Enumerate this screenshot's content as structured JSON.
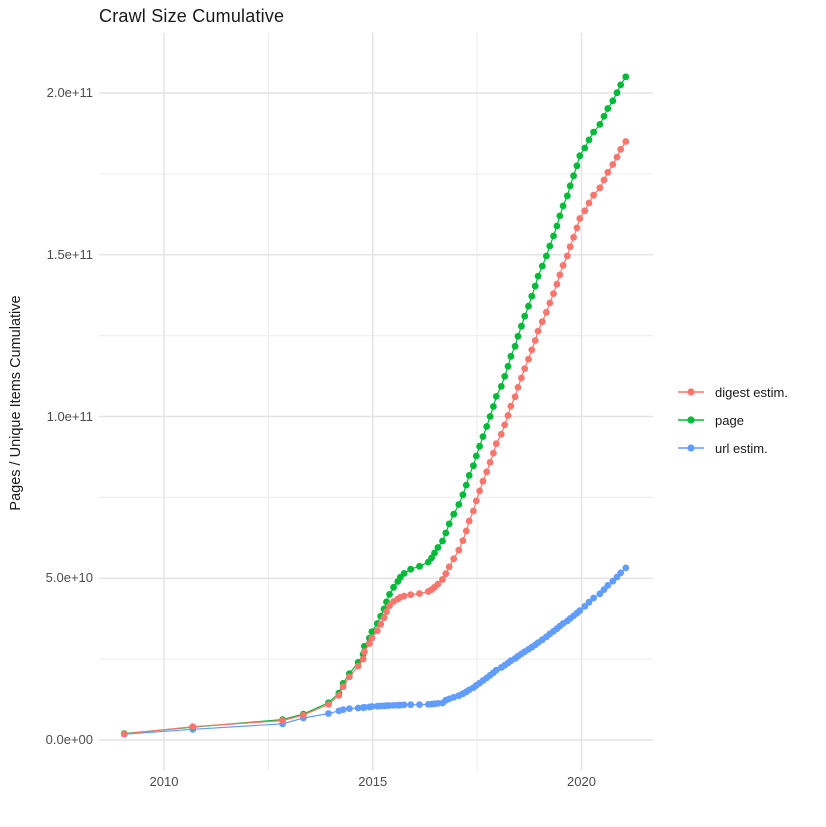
{
  "title": "Crawl Size Cumulative",
  "y_axis": {
    "label": "Pages / Unique Items Cumulative",
    "tick_labels": [
      "0.0e+00",
      "5.0e+10",
      "1.0e+11",
      "1.5e+11",
      "2.0e+11"
    ],
    "tick_values_e9": [
      0,
      50,
      100,
      150,
      200
    ],
    "minor_tick_values_e9": [
      25,
      75,
      125,
      175
    ]
  },
  "x_axis": {
    "tick_labels": [
      "2010",
      "2015",
      "2020"
    ],
    "tick_values": [
      2010,
      2015,
      2020
    ],
    "minor_tick_values": [
      2012.5,
      2017.5
    ]
  },
  "legend": {
    "position": "right",
    "entries": [
      "digest estim.",
      "page",
      "url estim."
    ]
  },
  "style": {
    "background": "#ffffff",
    "grid_major_color": "#e4e4e4",
    "grid_minor_color": "#f0f0f0",
    "tick_text_color": "#4d4d4d",
    "title_color": "#1a1a1a"
  },
  "chart_data": {
    "type": "line",
    "title": "Crawl Size Cumulative",
    "xlabel": "",
    "ylabel": "Pages / Unique Items Cumulative",
    "xlim": [
      2008.45,
      2021.66
    ],
    "ylim_e9": [
      0,
      218
    ],
    "values_unit": "1e9 (points stored as [year, value_in_billions])",
    "grid": true,
    "legend_position": "right-center",
    "marker": "point-with-line",
    "series": [
      {
        "name": "digest estim.",
        "color": "#F8766D",
        "points": [
          [
            2009.05,
            1.9
          ],
          [
            2010.69,
            4.1
          ],
          [
            2012.84,
            6.0
          ],
          [
            2013.34,
            7.7
          ],
          [
            2013.94,
            11.0
          ],
          [
            2014.19,
            13.8
          ],
          [
            2014.29,
            16.5
          ],
          [
            2014.44,
            19.5
          ],
          [
            2014.65,
            22.8
          ],
          [
            2014.77,
            25.0
          ],
          [
            2014.8,
            27.3
          ],
          [
            2014.92,
            29.8
          ],
          [
            2014.98,
            31.5
          ],
          [
            2015.11,
            33.8
          ],
          [
            2015.19,
            35.8
          ],
          [
            2015.27,
            37.8
          ],
          [
            2015.33,
            39.7
          ],
          [
            2015.4,
            41.5
          ],
          [
            2015.5,
            42.8
          ],
          [
            2015.6,
            43.6
          ],
          [
            2015.66,
            44.1
          ],
          [
            2015.75,
            44.5
          ],
          [
            2015.91,
            44.9
          ],
          [
            2016.12,
            45.3
          ],
          [
            2016.33,
            45.9
          ],
          [
            2016.41,
            46.5
          ],
          [
            2016.48,
            47.2
          ],
          [
            2016.56,
            48.2
          ],
          [
            2016.67,
            49.6
          ],
          [
            2016.75,
            51.4
          ],
          [
            2016.83,
            53.5
          ],
          [
            2016.94,
            56.0
          ],
          [
            2017.06,
            58.7
          ],
          [
            2017.16,
            61.6
          ],
          [
            2017.24,
            64.6
          ],
          [
            2017.31,
            67.7
          ],
          [
            2017.41,
            70.8
          ],
          [
            2017.48,
            73.9
          ],
          [
            2017.56,
            77.0
          ],
          [
            2017.64,
            80.0
          ],
          [
            2017.73,
            82.9
          ],
          [
            2017.81,
            85.8
          ],
          [
            2017.89,
            88.7
          ],
          [
            2017.96,
            91.6
          ],
          [
            2018.08,
            94.5
          ],
          [
            2018.16,
            97.4
          ],
          [
            2018.24,
            100.3
          ],
          [
            2018.31,
            103.2
          ],
          [
            2018.41,
            106.1
          ],
          [
            2018.48,
            109.0
          ],
          [
            2018.56,
            111.9
          ],
          [
            2018.64,
            114.8
          ],
          [
            2018.73,
            117.7
          ],
          [
            2018.81,
            120.6
          ],
          [
            2018.89,
            123.5
          ],
          [
            2018.96,
            126.4
          ],
          [
            2019.06,
            129.3
          ],
          [
            2019.16,
            132.2
          ],
          [
            2019.24,
            135.1
          ],
          [
            2019.33,
            138.0
          ],
          [
            2019.41,
            140.9
          ],
          [
            2019.48,
            143.8
          ],
          [
            2019.56,
            146.7
          ],
          [
            2019.66,
            149.6
          ],
          [
            2019.73,
            152.5
          ],
          [
            2019.81,
            155.4
          ],
          [
            2019.89,
            158.3
          ],
          [
            2019.96,
            161.2
          ],
          [
            2020.08,
            163.6
          ],
          [
            2020.18,
            166.0
          ],
          [
            2020.29,
            168.4
          ],
          [
            2020.44,
            170.7
          ],
          [
            2020.54,
            173.1
          ],
          [
            2020.63,
            175.5
          ],
          [
            2020.75,
            177.9
          ],
          [
            2020.85,
            180.2
          ],
          [
            2020.94,
            182.6
          ],
          [
            2021.06,
            185.0
          ]
        ]
      },
      {
        "name": "page",
        "color": "#00BA38",
        "points": [
          [
            2009.05,
            2.0
          ],
          [
            2010.69,
            4.0
          ],
          [
            2012.84,
            6.3
          ],
          [
            2013.34,
            8.0
          ],
          [
            2013.94,
            11.5
          ],
          [
            2014.19,
            14.5
          ],
          [
            2014.29,
            17.5
          ],
          [
            2014.44,
            20.5
          ],
          [
            2014.65,
            24.0
          ],
          [
            2014.77,
            26.5
          ],
          [
            2014.8,
            29.0
          ],
          [
            2014.92,
            31.5
          ],
          [
            2014.98,
            33.5
          ],
          [
            2015.11,
            36.0
          ],
          [
            2015.19,
            38.3
          ],
          [
            2015.27,
            40.5
          ],
          [
            2015.33,
            42.7
          ],
          [
            2015.4,
            45.0
          ],
          [
            2015.5,
            47.2
          ],
          [
            2015.6,
            49.0
          ],
          [
            2015.66,
            50.3
          ],
          [
            2015.75,
            51.5
          ],
          [
            2015.91,
            52.8
          ],
          [
            2016.12,
            53.7
          ],
          [
            2016.33,
            55.0
          ],
          [
            2016.41,
            56.3
          ],
          [
            2016.48,
            57.8
          ],
          [
            2016.56,
            59.5
          ],
          [
            2016.67,
            61.5
          ],
          [
            2016.75,
            64.0
          ],
          [
            2016.83,
            66.8
          ],
          [
            2016.94,
            69.8
          ],
          [
            2017.06,
            72.8
          ],
          [
            2017.16,
            75.8
          ],
          [
            2017.24,
            78.8
          ],
          [
            2017.31,
            81.8
          ],
          [
            2017.41,
            84.8
          ],
          [
            2017.48,
            87.8
          ],
          [
            2017.56,
            90.8
          ],
          [
            2017.64,
            93.8
          ],
          [
            2017.73,
            96.9
          ],
          [
            2017.81,
            100.0
          ],
          [
            2017.89,
            103.1
          ],
          [
            2017.96,
            106.2
          ],
          [
            2018.08,
            109.3
          ],
          [
            2018.16,
            112.4
          ],
          [
            2018.24,
            115.5
          ],
          [
            2018.31,
            118.6
          ],
          [
            2018.41,
            121.7
          ],
          [
            2018.48,
            124.8
          ],
          [
            2018.56,
            127.9
          ],
          [
            2018.64,
            131.0
          ],
          [
            2018.73,
            134.1
          ],
          [
            2018.81,
            137.2
          ],
          [
            2018.89,
            140.3
          ],
          [
            2018.96,
            143.4
          ],
          [
            2019.06,
            146.5
          ],
          [
            2019.16,
            149.6
          ],
          [
            2019.24,
            152.7
          ],
          [
            2019.33,
            155.8
          ],
          [
            2019.41,
            158.9
          ],
          [
            2019.48,
            162.0
          ],
          [
            2019.56,
            165.1
          ],
          [
            2019.66,
            168.2
          ],
          [
            2019.73,
            171.3
          ],
          [
            2019.81,
            174.4
          ],
          [
            2019.89,
            177.5
          ],
          [
            2019.96,
            180.6
          ],
          [
            2020.08,
            183.0
          ],
          [
            2020.18,
            185.5
          ],
          [
            2020.29,
            187.9
          ],
          [
            2020.44,
            190.3
          ],
          [
            2020.54,
            192.8
          ],
          [
            2020.63,
            195.2
          ],
          [
            2020.75,
            197.6
          ],
          [
            2020.85,
            200.1
          ],
          [
            2020.94,
            202.5
          ],
          [
            2021.06,
            205.0
          ]
        ]
      },
      {
        "name": "url estim.",
        "color": "#619CFF",
        "points": [
          [
            2009.05,
            1.8
          ],
          [
            2010.69,
            3.3
          ],
          [
            2012.84,
            5.0
          ],
          [
            2013.34,
            6.8
          ],
          [
            2013.94,
            8.2
          ],
          [
            2014.19,
            9.0
          ],
          [
            2014.29,
            9.4
          ],
          [
            2014.44,
            9.7
          ],
          [
            2014.65,
            9.9
          ],
          [
            2014.77,
            10.0
          ],
          [
            2014.8,
            10.1
          ],
          [
            2014.92,
            10.2
          ],
          [
            2014.98,
            10.35
          ],
          [
            2015.11,
            10.45
          ],
          [
            2015.19,
            10.5
          ],
          [
            2015.27,
            10.55
          ],
          [
            2015.33,
            10.6
          ],
          [
            2015.4,
            10.65
          ],
          [
            2015.5,
            10.7
          ],
          [
            2015.6,
            10.75
          ],
          [
            2015.66,
            10.8
          ],
          [
            2015.75,
            10.85
          ],
          [
            2015.91,
            10.9
          ],
          [
            2016.12,
            10.95
          ],
          [
            2016.33,
            11.0
          ],
          [
            2016.41,
            11.1
          ],
          [
            2016.48,
            11.2
          ],
          [
            2016.56,
            11.3
          ],
          [
            2016.67,
            11.45
          ],
          [
            2016.75,
            12.3
          ],
          [
            2016.83,
            12.7
          ],
          [
            2016.94,
            13.2
          ],
          [
            2017.06,
            13.7
          ],
          [
            2017.16,
            14.3
          ],
          [
            2017.24,
            14.9
          ],
          [
            2017.31,
            15.5
          ],
          [
            2017.41,
            16.2
          ],
          [
            2017.48,
            16.9
          ],
          [
            2017.56,
            17.6
          ],
          [
            2017.64,
            18.4
          ],
          [
            2017.73,
            19.2
          ],
          [
            2017.81,
            20.0
          ],
          [
            2017.89,
            20.8
          ],
          [
            2017.96,
            21.6
          ],
          [
            2018.08,
            22.4
          ],
          [
            2018.16,
            23.1
          ],
          [
            2018.24,
            23.8
          ],
          [
            2018.31,
            24.5
          ],
          [
            2018.41,
            25.2
          ],
          [
            2018.48,
            25.9
          ],
          [
            2018.56,
            26.6
          ],
          [
            2018.64,
            27.3
          ],
          [
            2018.73,
            28.0
          ],
          [
            2018.81,
            28.7
          ],
          [
            2018.89,
            29.4
          ],
          [
            2018.96,
            30.1
          ],
          [
            2019.06,
            31.0
          ],
          [
            2019.16,
            31.9
          ],
          [
            2019.24,
            32.8
          ],
          [
            2019.33,
            33.6
          ],
          [
            2019.41,
            34.4
          ],
          [
            2019.48,
            35.2
          ],
          [
            2019.56,
            36.0
          ],
          [
            2019.66,
            36.8
          ],
          [
            2019.73,
            37.6
          ],
          [
            2019.81,
            38.4
          ],
          [
            2019.89,
            39.2
          ],
          [
            2019.96,
            40.0
          ],
          [
            2020.08,
            41.3
          ],
          [
            2020.18,
            42.6
          ],
          [
            2020.29,
            43.9
          ],
          [
            2020.44,
            45.2
          ],
          [
            2020.54,
            46.5
          ],
          [
            2020.63,
            47.8
          ],
          [
            2020.75,
            49.1
          ],
          [
            2020.85,
            50.4
          ],
          [
            2020.94,
            51.7
          ],
          [
            2021.06,
            53.2
          ]
        ]
      }
    ]
  }
}
